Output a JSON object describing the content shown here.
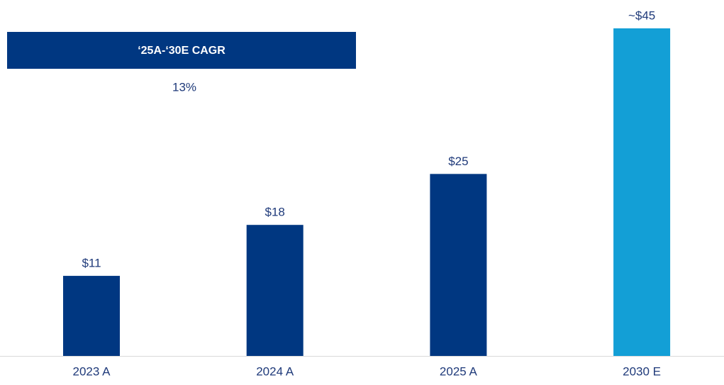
{
  "chart_data": {
    "type": "bar",
    "categories": [
      "2023 A",
      "2024 A",
      "2025 A",
      "2030 E"
    ],
    "values": [
      11,
      18,
      25,
      45
    ],
    "value_labels": [
      "$11",
      "$18",
      "$25",
      "~$45"
    ],
    "colors": [
      "#003781",
      "#003781",
      "#003781",
      "#139fd6"
    ],
    "annotation": {
      "title": "‘25A-‘30E CAGR",
      "value": "13%"
    }
  }
}
